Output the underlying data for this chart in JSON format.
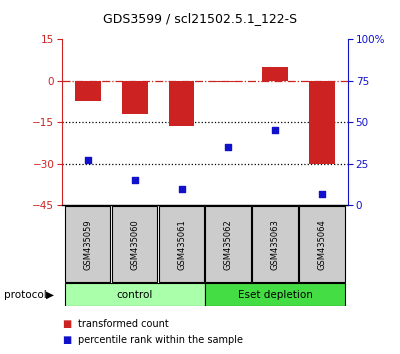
{
  "title": "GDS3599 / scl21502.5.1_122-S",
  "samples": [
    "GSM435059",
    "GSM435060",
    "GSM435061",
    "GSM435062",
    "GSM435063",
    "GSM435064"
  ],
  "bar_values": [
    -7.5,
    -12.0,
    -16.5,
    -0.5,
    5.0,
    -30.0
  ],
  "scatter_values_pct": [
    27.0,
    15.0,
    10.0,
    35.0,
    45.0,
    7.0
  ],
  "ylim_left": [
    -45,
    15
  ],
  "ylim_right": [
    0,
    100
  ],
  "yticks_left": [
    15,
    0,
    -15,
    -30,
    -45
  ],
  "yticks_right": [
    100,
    75,
    50,
    25,
    0
  ],
  "ytick_labels_right": [
    "100%",
    "75",
    "50",
    "25",
    "0"
  ],
  "hline_dash": 0,
  "hline_dot1": -15,
  "hline_dot2": -30,
  "bar_color": "#cc2222",
  "scatter_color": "#1111cc",
  "control_label": "control",
  "esetdepletion_label": "Eset depletion",
  "protocol_label": "protocol",
  "legend_bar_label": "transformed count",
  "legend_scatter_label": "percentile rank within the sample",
  "control_color": "#aaffaa",
  "esetdepletion_color": "#44dd44",
  "sample_box_color": "#cccccc",
  "bar_width": 0.55
}
